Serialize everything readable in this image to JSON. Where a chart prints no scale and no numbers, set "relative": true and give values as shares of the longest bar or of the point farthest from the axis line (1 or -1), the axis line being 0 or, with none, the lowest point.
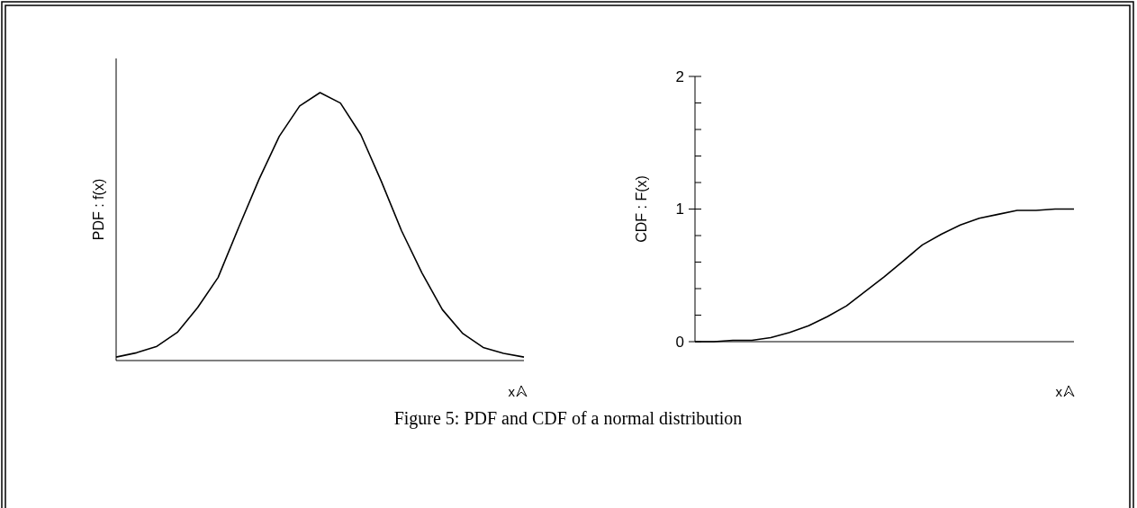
{
  "chart_data": [
    {
      "type": "line",
      "relative": true,
      "ylabel": "PDF : f(x)",
      "xlabel": "x",
      "color": "#000000",
      "marker": "none",
      "categories": [
        null,
        null,
        null,
        null,
        null,
        null,
        null,
        null,
        null,
        null,
        null,
        null,
        null,
        null,
        null,
        null,
        null,
        null,
        null,
        null,
        null
      ],
      "values": [
        0.013,
        0.029,
        0.053,
        0.105,
        0.198,
        0.31,
        0.495,
        0.675,
        0.837,
        0.95,
        1,
        0.961,
        0.843,
        0.67,
        0.484,
        0.327,
        0.19,
        0.101,
        0.049,
        0.027,
        0.013
      ]
    },
    {
      "type": "line",
      "ylabel": "CDF : F(x)",
      "xlabel": "x",
      "color": "#000000",
      "marker": "none",
      "categories": [
        null,
        null,
        null,
        null,
        null,
        null,
        null,
        null,
        null,
        null,
        null,
        null,
        null,
        null,
        null,
        null,
        null,
        null,
        null,
        null,
        null
      ],
      "values": [
        0,
        0,
        0.01,
        0.01,
        0.03,
        0.07,
        0.12,
        0.19,
        0.27,
        0.38,
        0.49,
        0.61,
        0.73,
        0.81,
        0.88,
        0.93,
        0.96,
        0.99,
        0.99,
        1,
        1
      ],
      "ylim": [
        0,
        2
      ],
      "yticks": [
        0,
        {
          "value": 0.2,
          "label": null
        },
        {
          "value": 0.4,
          "label": null
        },
        {
          "value": 0.6,
          "label": null
        },
        {
          "value": 0.8,
          "label": null
        },
        1,
        {
          "value": 1.2,
          "label": null
        },
        {
          "value": 1.4,
          "label": null
        },
        {
          "value": 1.6,
          "label": null
        },
        {
          "value": 1.8,
          "label": null
        },
        2
      ],
      "annotations": [
        "Figure 5:  PDF and CDF of a normal distribution"
      ]
    }
  ]
}
